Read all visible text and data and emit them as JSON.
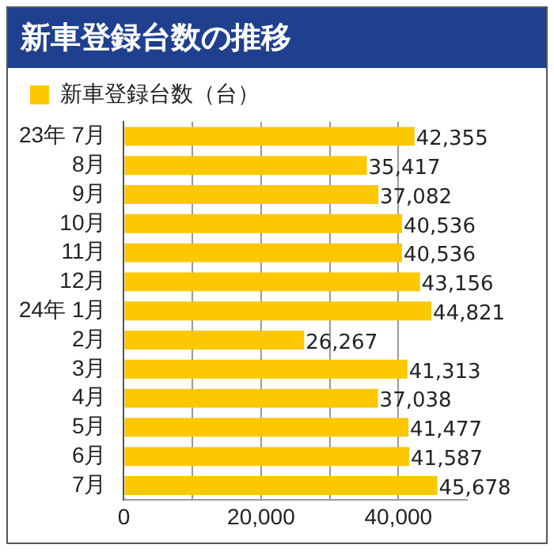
{
  "chart_data": {
    "type": "bar",
    "orientation": "horizontal",
    "title": "新車登録台数の推移",
    "categories": [
      "23年 7月",
      "8月",
      "9月",
      "10月",
      "11月",
      "12月",
      "24年 1月",
      "2月",
      "3月",
      "4月",
      "5月",
      "6月",
      "7月"
    ],
    "series": [
      {
        "name": "新車登録台数（台）",
        "color": "#fcc800",
        "values": [
          42355,
          35417,
          37082,
          40536,
          40536,
          43156,
          44821,
          26267,
          41313,
          37038,
          41477,
          41587,
          45678
        ],
        "value_labels": [
          "42,355",
          "35,417",
          "37,082",
          "40,536",
          "40,536",
          "43,156",
          "44,821",
          "26,267",
          "41,313",
          "37,038",
          "41,477",
          "41,587",
          "45,678"
        ]
      }
    ],
    "xlim": [
      0,
      50000
    ],
    "xticks": [
      0,
      {
        "value": 10000,
        "label": null
      },
      {
        "value": 20000,
        "label": "20,000"
      },
      {
        "value": 30000,
        "label": null
      },
      {
        "value": 40000,
        "label": "40,000"
      }
    ],
    "grid": "x",
    "legend": "top left"
  }
}
